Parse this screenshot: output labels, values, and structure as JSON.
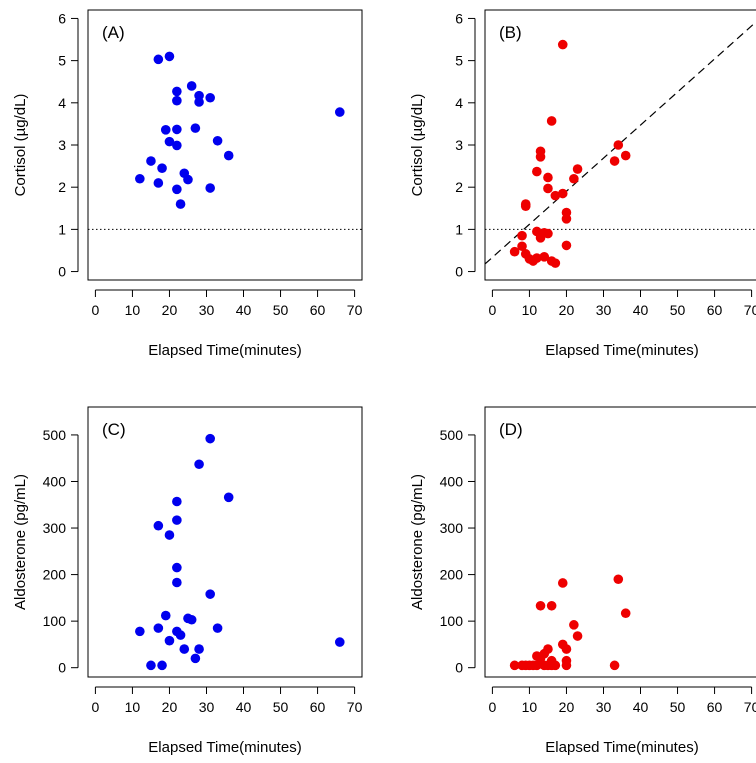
{
  "chart_data": [
    {
      "type": "scatter",
      "panel_label": "(A)",
      "xlabel": "Elapsed Time(minutes)",
      "ylabel": "Cortisol (µg/dL)",
      "xlim": [
        -2,
        72
      ],
      "ylim": [
        -0.2,
        6.2
      ],
      "x_ticks": [
        "0",
        "10",
        "20",
        "30",
        "40",
        "50",
        "60",
        "70"
      ],
      "y_ticks": [
        "0",
        "1",
        "2",
        "3",
        "4",
        "5",
        "6"
      ],
      "color": "#0000ee",
      "reference_hline": 1,
      "points": [
        {
          "x": 17,
          "y": 5.03
        },
        {
          "x": 20,
          "y": 5.1
        },
        {
          "x": 22,
          "y": 4.27
        },
        {
          "x": 26,
          "y": 4.4
        },
        {
          "x": 22,
          "y": 4.05
        },
        {
          "x": 28,
          "y": 4.17
        },
        {
          "x": 28,
          "y": 4.02
        },
        {
          "x": 31,
          "y": 4.12
        },
        {
          "x": 19,
          "y": 3.36
        },
        {
          "x": 22,
          "y": 3.37
        },
        {
          "x": 27,
          "y": 3.4
        },
        {
          "x": 20,
          "y": 3.08
        },
        {
          "x": 22,
          "y": 2.99
        },
        {
          "x": 33,
          "y": 3.1
        },
        {
          "x": 36,
          "y": 2.75
        },
        {
          "x": 15,
          "y": 2.62
        },
        {
          "x": 18,
          "y": 2.45
        },
        {
          "x": 24,
          "y": 2.33
        },
        {
          "x": 25,
          "y": 2.18
        },
        {
          "x": 12,
          "y": 2.2
        },
        {
          "x": 17,
          "y": 2.1
        },
        {
          "x": 22,
          "y": 1.95
        },
        {
          "x": 31,
          "y": 1.98
        },
        {
          "x": 23,
          "y": 1.6
        },
        {
          "x": 66,
          "y": 3.78
        }
      ]
    },
    {
      "type": "scatter",
      "panel_label": "(B)",
      "xlabel": "Elapsed Time(minutes)",
      "ylabel": "Cortisol (µg/dL)",
      "xlim": [
        -2,
        72
      ],
      "ylim": [
        -0.2,
        6.2
      ],
      "x_ticks": [
        "0",
        "10",
        "20",
        "30",
        "40",
        "50",
        "60",
        "70"
      ],
      "y_ticks": [
        "0",
        "1",
        "2",
        "3",
        "4",
        "5",
        "6"
      ],
      "color": "#ee0000",
      "reference_hline": 1,
      "reference_line": {
        "x": [
          -2,
          72
        ],
        "y": [
          0.18,
          5.98
        ]
      },
      "points": [
        {
          "x": 19,
          "y": 5.38
        },
        {
          "x": 16,
          "y": 3.57
        },
        {
          "x": 34,
          "y": 3.0
        },
        {
          "x": 13,
          "y": 2.85
        },
        {
          "x": 13,
          "y": 2.72
        },
        {
          "x": 36,
          "y": 2.75
        },
        {
          "x": 33,
          "y": 2.62
        },
        {
          "x": 12,
          "y": 2.37
        },
        {
          "x": 15,
          "y": 2.23
        },
        {
          "x": 23,
          "y": 2.43
        },
        {
          "x": 22,
          "y": 2.2
        },
        {
          "x": 15,
          "y": 1.97
        },
        {
          "x": 17,
          "y": 1.8
        },
        {
          "x": 19,
          "y": 1.85
        },
        {
          "x": 9,
          "y": 1.6
        },
        {
          "x": 9,
          "y": 1.55
        },
        {
          "x": 20,
          "y": 1.4
        },
        {
          "x": 20,
          "y": 1.25
        },
        {
          "x": 12,
          "y": 0.95
        },
        {
          "x": 13,
          "y": 0.88
        },
        {
          "x": 14,
          "y": 0.92
        },
        {
          "x": 15,
          "y": 0.9
        },
        {
          "x": 8,
          "y": 0.85
        },
        {
          "x": 13,
          "y": 0.8
        },
        {
          "x": 20,
          "y": 0.62
        },
        {
          "x": 8,
          "y": 0.6
        },
        {
          "x": 6,
          "y": 0.47
        },
        {
          "x": 9,
          "y": 0.42
        },
        {
          "x": 10,
          "y": 0.3
        },
        {
          "x": 12,
          "y": 0.32
        },
        {
          "x": 14,
          "y": 0.35
        },
        {
          "x": 11,
          "y": 0.25
        },
        {
          "x": 16,
          "y": 0.25
        },
        {
          "x": 17,
          "y": 0.2
        }
      ]
    },
    {
      "type": "scatter",
      "panel_label": "(C)",
      "xlabel": "Elapsed Time(minutes)",
      "ylabel": "Aldosterone (pg/mL)",
      "xlim": [
        -2,
        72
      ],
      "ylim": [
        -20,
        560
      ],
      "x_ticks": [
        "0",
        "10",
        "20",
        "30",
        "40",
        "50",
        "60",
        "70"
      ],
      "y_ticks": [
        "0",
        "100",
        "200",
        "300",
        "400",
        "500"
      ],
      "color": "#0000ee",
      "points": [
        {
          "x": 31,
          "y": 492
        },
        {
          "x": 28,
          "y": 437
        },
        {
          "x": 36,
          "y": 366
        },
        {
          "x": 22,
          "y": 357
        },
        {
          "x": 22,
          "y": 317
        },
        {
          "x": 17,
          "y": 305
        },
        {
          "x": 20,
          "y": 285
        },
        {
          "x": 22,
          "y": 215
        },
        {
          "x": 22,
          "y": 183
        },
        {
          "x": 31,
          "y": 158
        },
        {
          "x": 19,
          "y": 112
        },
        {
          "x": 25,
          "y": 106
        },
        {
          "x": 26,
          "y": 103
        },
        {
          "x": 17,
          "y": 85
        },
        {
          "x": 33,
          "y": 85
        },
        {
          "x": 12,
          "y": 78
        },
        {
          "x": 22,
          "y": 78
        },
        {
          "x": 23,
          "y": 70
        },
        {
          "x": 20,
          "y": 58
        },
        {
          "x": 24,
          "y": 40
        },
        {
          "x": 28,
          "y": 40
        },
        {
          "x": 27,
          "y": 20
        },
        {
          "x": 15,
          "y": 5
        },
        {
          "x": 18,
          "y": 5
        },
        {
          "x": 66,
          "y": 55
        }
      ]
    },
    {
      "type": "scatter",
      "panel_label": "(D)",
      "xlabel": "Elapsed Time(minutes)",
      "ylabel": "Aldosterone (pg/mL)",
      "xlim": [
        -2,
        72
      ],
      "ylim": [
        -20,
        560
      ],
      "x_ticks": [
        "0",
        "10",
        "20",
        "30",
        "40",
        "50",
        "60",
        "70"
      ],
      "y_ticks": [
        "0",
        "100",
        "200",
        "300",
        "400",
        "500"
      ],
      "color": "#ee0000",
      "points": [
        {
          "x": 34,
          "y": 190
        },
        {
          "x": 19,
          "y": 182
        },
        {
          "x": 13,
          "y": 133
        },
        {
          "x": 16,
          "y": 133
        },
        {
          "x": 36,
          "y": 117
        },
        {
          "x": 22,
          "y": 92
        },
        {
          "x": 23,
          "y": 68
        },
        {
          "x": 19,
          "y": 50
        },
        {
          "x": 20,
          "y": 40
        },
        {
          "x": 15,
          "y": 40
        },
        {
          "x": 14,
          "y": 30
        },
        {
          "x": 12,
          "y": 25
        },
        {
          "x": 13,
          "y": 20
        },
        {
          "x": 20,
          "y": 15
        },
        {
          "x": 16,
          "y": 15
        },
        {
          "x": 6,
          "y": 5
        },
        {
          "x": 8,
          "y": 5
        },
        {
          "x": 9,
          "y": 5
        },
        {
          "x": 10,
          "y": 5
        },
        {
          "x": 11,
          "y": 5
        },
        {
          "x": 12,
          "y": 5
        },
        {
          "x": 14,
          "y": 5
        },
        {
          "x": 15,
          "y": 5
        },
        {
          "x": 16,
          "y": 5
        },
        {
          "x": 17,
          "y": 5
        },
        {
          "x": 20,
          "y": 5
        },
        {
          "x": 33,
          "y": 5
        }
      ]
    }
  ]
}
